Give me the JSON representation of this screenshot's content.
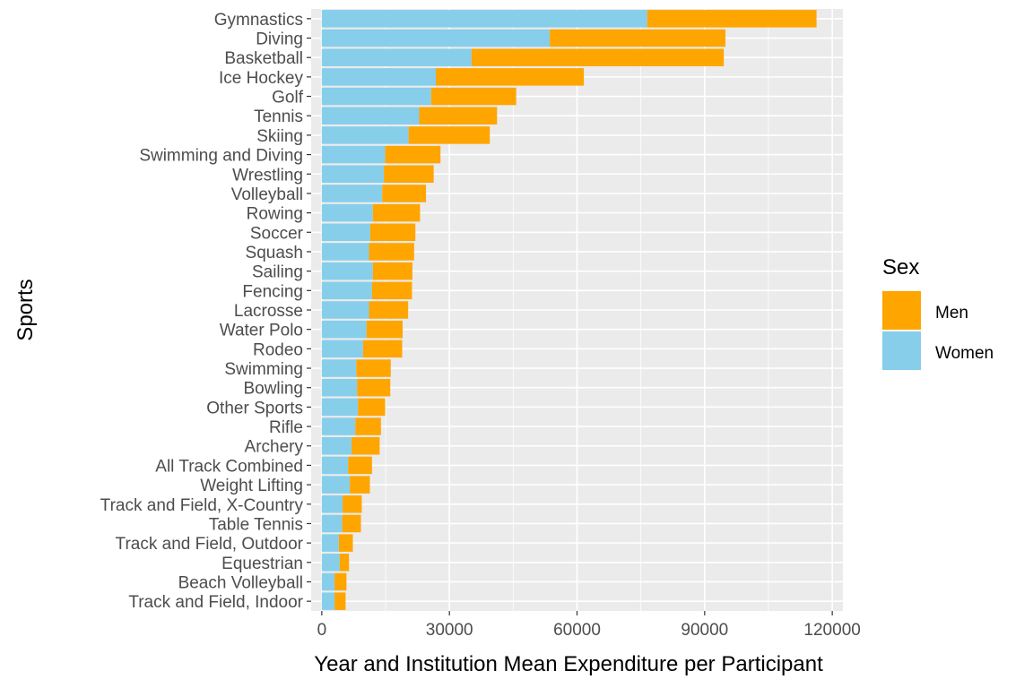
{
  "chart_data": {
    "type": "bar",
    "orientation": "horizontal",
    "stacked": true,
    "xlabel": "Year and Institution Mean Expenditure per Participant",
    "ylabel": "Sports",
    "xlim": [
      -2500,
      122500
    ],
    "xticks": [
      0,
      30000,
      60000,
      90000,
      120000
    ],
    "xtick_labels": [
      "0",
      "30000",
      "60000",
      "90000",
      "120000"
    ],
    "grid": true,
    "legend_position": "right",
    "legend": {
      "title": "Sex",
      "entries": [
        {
          "name": "Men",
          "color": "#FFA500"
        },
        {
          "name": "Women",
          "color": "#87CEEB"
        }
      ]
    },
    "categories": [
      "Gymnastics",
      "Diving",
      "Basketball",
      "Ice Hockey",
      "Golf",
      "Tennis",
      "Skiing",
      "Swimming and Diving",
      "Wrestling",
      "Volleyball",
      "Rowing",
      "Soccer",
      "Squash",
      "Sailing",
      "Fencing",
      "Lacrosse",
      "Water Polo",
      "Rodeo",
      "Swimming",
      "Bowling",
      "Other Sports",
      "Rifle",
      "Archery",
      "All Track Combined",
      "Weight Lifting",
      "Track and Field, X-Country",
      "Table Tennis",
      "Track and Field, Outdoor",
      "Equestrian",
      "Beach Volleyball",
      "Track and Field, Indoor"
    ],
    "series": [
      {
        "name": "Women",
        "color": "#87CEEB",
        "values": [
          76500,
          53600,
          35200,
          26800,
          25700,
          22900,
          20400,
          14900,
          14600,
          14200,
          12000,
          11400,
          11100,
          12000,
          11800,
          11100,
          10500,
          9700,
          8100,
          8300,
          8500,
          7900,
          7000,
          6200,
          6600,
          4900,
          4800,
          4000,
          4200,
          3000,
          3000
        ]
      },
      {
        "name": "Men",
        "color": "#FFA500",
        "values": [
          39800,
          41300,
          59300,
          34800,
          20000,
          18300,
          19100,
          13000,
          11700,
          10300,
          11100,
          10600,
          10600,
          9300,
          9400,
          9200,
          8500,
          9200,
          8100,
          7800,
          6400,
          6000,
          6600,
          5600,
          4700,
          4500,
          4400,
          3300,
          2200,
          2800,
          2600
        ]
      }
    ]
  }
}
